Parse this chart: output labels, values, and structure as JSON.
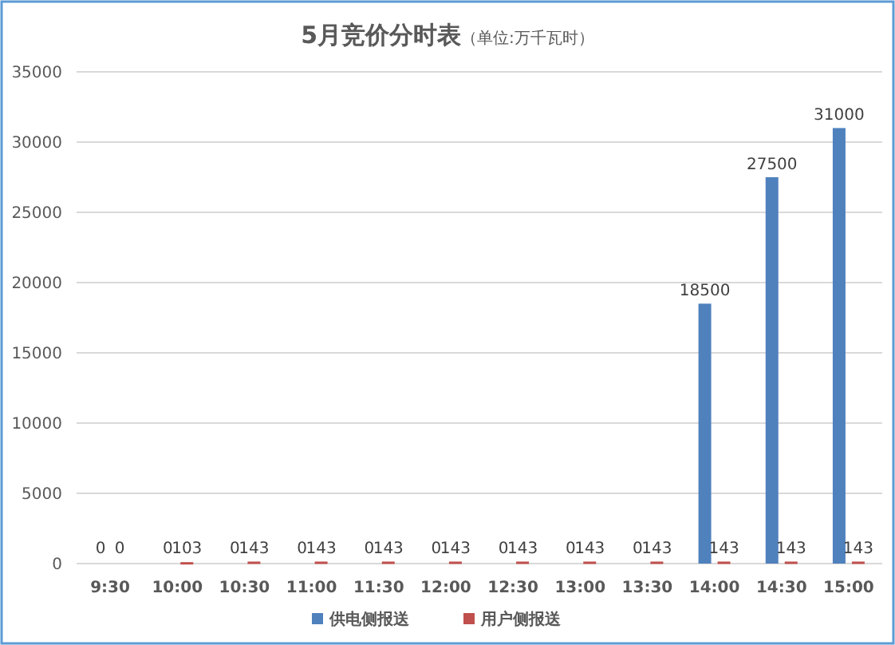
{
  "chart_data": {
    "type": "bar",
    "title": "5月竞价分时表",
    "subtitle": "（单位:万千瓦时）",
    "categories": [
      "9:30",
      "10:00",
      "10:30",
      "11:00",
      "11:30",
      "12:00",
      "12:30",
      "13:00",
      "13:30",
      "14:00",
      "14:30",
      "15:00"
    ],
    "series": [
      {
        "name": "供电侧报送",
        "color": "#4f81bd",
        "values": [
          0,
          0,
          0,
          0,
          0,
          0,
          0,
          0,
          0,
          18500,
          27500,
          31000
        ]
      },
      {
        "name": "用户侧报送",
        "color": "#c0504d",
        "values": [
          0,
          103,
          143,
          143,
          143,
          143,
          143,
          143,
          143,
          143,
          143,
          143
        ]
      }
    ],
    "ylim": [
      0,
      35000
    ],
    "yticks": [
      0,
      5000,
      10000,
      15000,
      20000,
      25000,
      30000,
      35000
    ],
    "grid": "y",
    "legend": "bottom",
    "data_labels": true
  }
}
